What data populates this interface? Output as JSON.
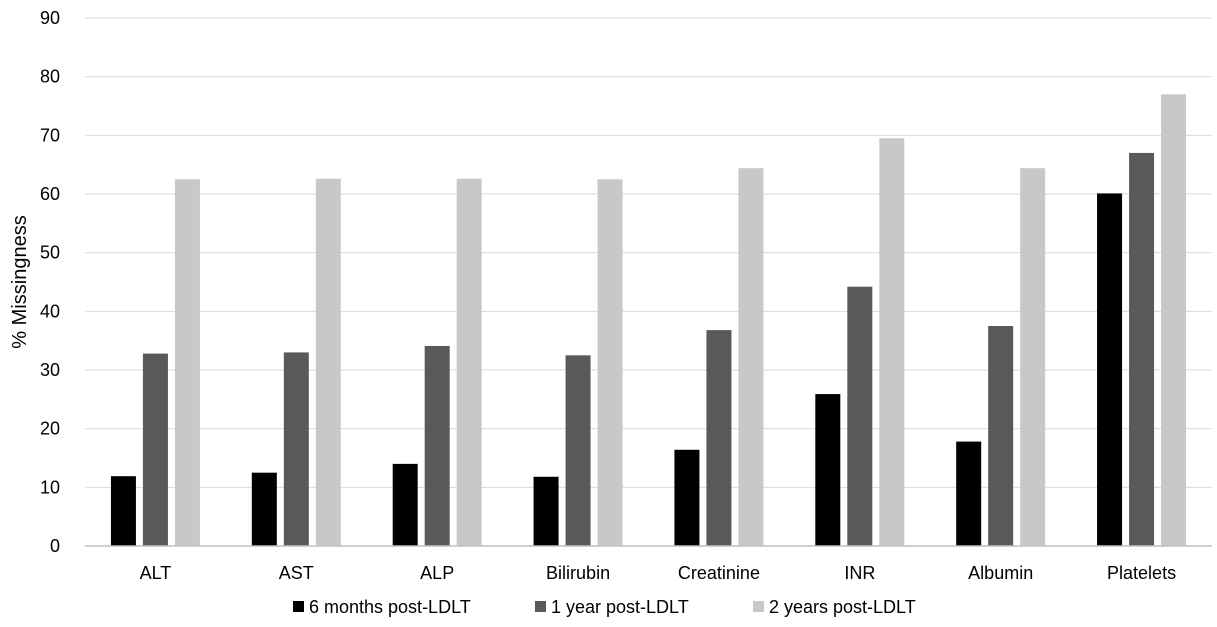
{
  "chart_data": {
    "type": "bar",
    "title": "",
    "xlabel": "",
    "ylabel": "% Missingness",
    "ylim": [
      0,
      90
    ],
    "yticks": [
      0,
      10,
      20,
      30,
      40,
      50,
      60,
      70,
      80,
      90
    ],
    "grid": true,
    "legend_position": "bottom",
    "categories": [
      "ALT",
      "AST",
      "ALP",
      "Bilirubin",
      "Creatinine",
      "INR",
      "Albumin",
      "Platelets"
    ],
    "series": [
      {
        "name": "6 months post-LDLT",
        "color": "#000000",
        "values": [
          11.9,
          12.5,
          14.0,
          11.8,
          16.4,
          25.9,
          17.8,
          60.1
        ]
      },
      {
        "name": "1 year post-LDLT",
        "color": "#595959",
        "values": [
          32.8,
          33.0,
          34.1,
          32.5,
          36.8,
          44.2,
          37.5,
          67.0
        ]
      },
      {
        "name": "2 years post-LDLT",
        "color": "#c8c8c8",
        "values": [
          62.5,
          62.6,
          62.6,
          62.5,
          64.4,
          69.5,
          64.4,
          77.0
        ]
      }
    ]
  }
}
